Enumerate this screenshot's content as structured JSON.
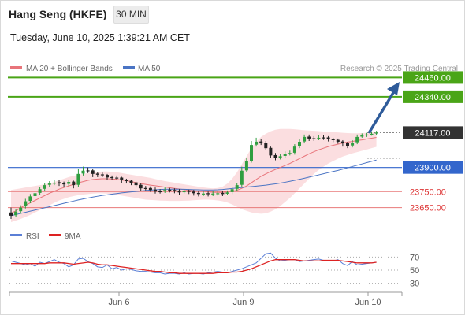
{
  "header": {
    "title": "Hang Seng (HKFE)",
    "timeframe": "30 MIN",
    "datetime": "Tuesday, June 10, 2025 1:39:21 AM CET"
  },
  "legend": {
    "ma20": "MA 20 + Bollinger Bands",
    "ma50": "MA 50",
    "credit": "Research © 2025 Trading Central"
  },
  "rsi_legend": {
    "rsi": "RSI",
    "ma9": "9MA"
  },
  "colors": {
    "up": "#2f9e3f",
    "down": "#222222",
    "ma20": "#e8747a",
    "bollinger": "#f9d3d5",
    "ma50": "#4a74c4",
    "resistance": "#4aa517",
    "support_blue": "#3366cc",
    "support_red": "#e87a7a",
    "current": "#333333",
    "arrow": "#2e5b9a",
    "rsi": "#5b7fd6",
    "rsi_ma": "#dd2222"
  },
  "chart_data": [
    {
      "type": "candlestick",
      "title": "Hang Seng (HKFE) 30 MIN",
      "ylim": [
        23570,
        24560
      ],
      "x_ticks": [
        "Jun 6",
        "Jun 9",
        "Jun 10"
      ],
      "levels": [
        {
          "label": "24460.00",
          "value": 24460,
          "kind": "resistance"
        },
        {
          "label": "24340.00",
          "value": 24340,
          "kind": "resistance"
        },
        {
          "label": "24117.00",
          "value": 24117,
          "kind": "current"
        },
        {
          "label": "23900.00",
          "value": 23900,
          "kind": "pivot"
        },
        {
          "label": "23750.00",
          "value": 23750,
          "kind": "support"
        },
        {
          "label": "23650.00",
          "value": 23650,
          "kind": "support"
        }
      ],
      "close": [
        23600,
        23625,
        23650,
        23690,
        23720,
        23740,
        23765,
        23790,
        23800,
        23805,
        23800,
        23795,
        23810,
        23790,
        23860,
        23880,
        23880,
        23860,
        23855,
        23852,
        23838,
        23835,
        23835,
        23820,
        23815,
        23805,
        23790,
        23770,
        23770,
        23760,
        23750,
        23750,
        23760,
        23758,
        23755,
        23745,
        23752,
        23748,
        23740,
        23735,
        23738,
        23735,
        23738,
        23740,
        23735,
        23745,
        23765,
        23790,
        23880,
        23940,
        24040,
        24060,
        24050,
        24020,
        23975,
        23960,
        23970,
        23985,
        23990,
        24030,
        24060,
        24090,
        24080,
        24080,
        24085,
        24085,
        24075,
        24070,
        24060,
        24050,
        24035,
        24055,
        24090,
        24100,
        24105,
        24110,
        24117
      ],
      "open": [
        23620,
        23603,
        23628,
        23660,
        23692,
        23722,
        23742,
        23767,
        23792,
        23802,
        23808,
        23801,
        23798,
        23812,
        23792,
        23862,
        23882,
        23882,
        23862,
        23857,
        23854,
        23840,
        23837,
        23837,
        23822,
        23817,
        23807,
        23792,
        23772,
        23772,
        23762,
        23752,
        23752,
        23762,
        23760,
        23757,
        23747,
        23754,
        23750,
        23742,
        23737,
        23740,
        23737,
        23740,
        23742,
        23737,
        23747,
        23767,
        23792,
        23882,
        23942,
        24042,
        24062,
        24052,
        24022,
        23977,
        23962,
        23972,
        23987,
        23992,
        24032,
        24062,
        24092,
        24082,
        24082,
        24087,
        24087,
        24077,
        24072,
        24062,
        24052,
        24037,
        24057,
        24092,
        24102,
        24107,
        24112
      ],
      "high": [
        23650,
        23640,
        23665,
        23705,
        23735,
        23755,
        23780,
        23805,
        23815,
        23820,
        23820,
        23812,
        23825,
        23818,
        23890,
        23905,
        23900,
        23890,
        23870,
        23868,
        23860,
        23850,
        23850,
        23842,
        23830,
        23822,
        23812,
        23800,
        23785,
        23782,
        23775,
        23765,
        23775,
        23772,
        23770,
        23765,
        23765,
        23762,
        23760,
        23752,
        23752,
        23750,
        23752,
        23755,
        23755,
        23757,
        23778,
        23802,
        23905,
        23960,
        24065,
        24085,
        24075,
        24065,
        24030,
        23990,
        23985,
        24000,
        24005,
        24045,
        24075,
        24105,
        24105,
        24095,
        24100,
        24100,
        24095,
        24085,
        24080,
        24070,
        24060,
        24070,
        24105,
        24112,
        24115,
        24120,
        24128
      ],
      "low": [
        23580,
        23590,
        23612,
        23645,
        23678,
        23708,
        23730,
        23755,
        23780,
        23790,
        23785,
        23780,
        23785,
        23770,
        23780,
        23850,
        23865,
        23840,
        23840,
        23840,
        23825,
        23822,
        23822,
        23805,
        23800,
        23790,
        23775,
        23755,
        23758,
        23748,
        23738,
        23738,
        23742,
        23745,
        23740,
        23732,
        23738,
        23735,
        23725,
        23720,
        23722,
        23720,
        23722,
        23725,
        23722,
        23730,
        23735,
        23755,
        23780,
        23870,
        23930,
        24030,
        24040,
        24010,
        23960,
        23945,
        23950,
        23960,
        23975,
        23980,
        24020,
        24050,
        24065,
        24065,
        24070,
        24072,
        24062,
        24058,
        24048,
        24030,
        24020,
        24025,
        24045,
        24085,
        24090,
        24098,
        24100
      ],
      "ma20": [
        23615,
        23630,
        23650,
        23665,
        23680,
        23695,
        23710,
        23725,
        23740,
        23752,
        23765,
        23775,
        23785,
        23795,
        23805,
        23812,
        23820,
        23825,
        23828,
        23830,
        23830,
        23828,
        23826,
        23822,
        23818,
        23812,
        23806,
        23800,
        23795,
        23790,
        23786,
        23782,
        23778,
        23774,
        23770,
        23766,
        23762,
        23758,
        23755,
        23752,
        23750,
        23748,
        23746,
        23745,
        23745,
        23748,
        23752,
        23758,
        23770,
        23785,
        23805,
        23825,
        23845,
        23860,
        23875,
        23888,
        23900,
        23912,
        23925,
        23940,
        23955,
        23970,
        23985,
        23998,
        24010,
        24020,
        24030,
        24038,
        24045,
        24052,
        24058,
        24062,
        24068,
        24072,
        24077,
        24082,
        24087
      ],
      "bb_upper": [
        23760,
        23765,
        23770,
        23775,
        23780,
        23785,
        23790,
        23795,
        23800,
        23810,
        23820,
        23830,
        23840,
        23848,
        23855,
        23860,
        23865,
        23870,
        23872,
        23875,
        23875,
        23872,
        23870,
        23865,
        23860,
        23855,
        23850,
        23845,
        23840,
        23835,
        23828,
        23822,
        23815,
        23810,
        23805,
        23800,
        23795,
        23790,
        23785,
        23780,
        23776,
        23772,
        23770,
        23772,
        23780,
        23800,
        23830,
        23870,
        23920,
        23970,
        24020,
        24060,
        24090,
        24110,
        24125,
        24135,
        24140,
        24140,
        24140,
        24138,
        24135,
        24132,
        24130,
        24128,
        24126,
        24124,
        24122,
        24120,
        24118,
        24116,
        24114,
        24113,
        24113,
        24114,
        24116,
        24118,
        24120
      ],
      "bb_lower": [
        23560,
        23570,
        23580,
        23592,
        23605,
        23620,
        23635,
        23650,
        23665,
        23680,
        23695,
        23705,
        23715,
        23722,
        23728,
        23732,
        23735,
        23738,
        23740,
        23740,
        23738,
        23735,
        23730,
        23725,
        23720,
        23715,
        23710,
        23705,
        23700,
        23698,
        23696,
        23694,
        23693,
        23692,
        23692,
        23692,
        23693,
        23694,
        23696,
        23698,
        23700,
        23700,
        23698,
        23695,
        23690,
        23682,
        23670,
        23655,
        23640,
        23630,
        23620,
        23615,
        23612,
        23615,
        23625,
        23640,
        23660,
        23685,
        23710,
        23740,
        23770,
        23800,
        23830,
        23860,
        23885,
        23905,
        23925,
        23940,
        23955,
        23968,
        23978,
        23988,
        23996,
        24004,
        24012,
        24020,
        24028
      ],
      "ma50": [
        23600,
        23607,
        23614,
        23621,
        23628,
        23635,
        23642,
        23649,
        23656,
        23663,
        23670,
        23677,
        23684,
        23691,
        23698,
        23704,
        23710,
        23716,
        23721,
        23726,
        23730,
        23734,
        23738,
        23742,
        23745,
        23748,
        23751,
        23754,
        23757,
        23759,
        23761,
        23763,
        23764,
        23765,
        23765,
        23765,
        23764,
        23763,
        23762,
        23761,
        23760,
        23760,
        23760,
        23761,
        23763,
        23766,
        23769,
        23772,
        23775,
        23778,
        23781,
        23784,
        23787,
        23790,
        23794,
        23798,
        23803,
        23808,
        23814,
        23820,
        23826,
        23833,
        23840,
        23847,
        23854,
        23861,
        23868,
        23875,
        23882,
        23890,
        23898,
        23906,
        23914,
        23922,
        23930,
        23938,
        23946
      ]
    },
    {
      "type": "line",
      "title": "RSI",
      "ylim": [
        20,
        80
      ],
      "y_ticks": [
        70,
        50,
        30
      ],
      "series": [
        {
          "name": "RSI",
          "values": [
            64,
            62,
            60,
            58,
            60,
            56,
            62,
            60,
            63,
            66,
            62,
            60,
            55,
            58,
            67,
            68,
            63,
            60,
            55,
            54,
            58,
            52,
            54,
            50,
            52,
            51,
            49,
            48,
            48,
            47,
            46,
            46,
            44,
            45,
            45,
            44,
            46,
            44,
            45,
            45,
            44,
            46,
            47,
            48,
            47,
            46,
            48,
            50,
            52,
            55,
            58,
            61,
            68,
            75,
            76,
            68,
            64,
            65,
            66,
            66,
            63,
            64,
            65,
            66,
            67,
            65,
            64,
            64,
            66,
            60,
            57,
            63,
            58,
            59,
            60,
            61,
            62
          ]
        },
        {
          "name": "9MA",
          "values": [
            60,
            60,
            60,
            60,
            60,
            60,
            60,
            60,
            61,
            61,
            61,
            61,
            60,
            59,
            60,
            61,
            62,
            61,
            59,
            58,
            58,
            57,
            56,
            55,
            54,
            53,
            52,
            51,
            50,
            49,
            48,
            48,
            47,
            46,
            46,
            45,
            45,
            45,
            45,
            45,
            45,
            45,
            45,
            46,
            46,
            46,
            47,
            47,
            48,
            50,
            52,
            55,
            58,
            61,
            64,
            66,
            66,
            66,
            66,
            66,
            65,
            64,
            64,
            64,
            64,
            65,
            65,
            65,
            65,
            64,
            63,
            62,
            61,
            61,
            61,
            61,
            62
          ]
        }
      ]
    }
  ]
}
